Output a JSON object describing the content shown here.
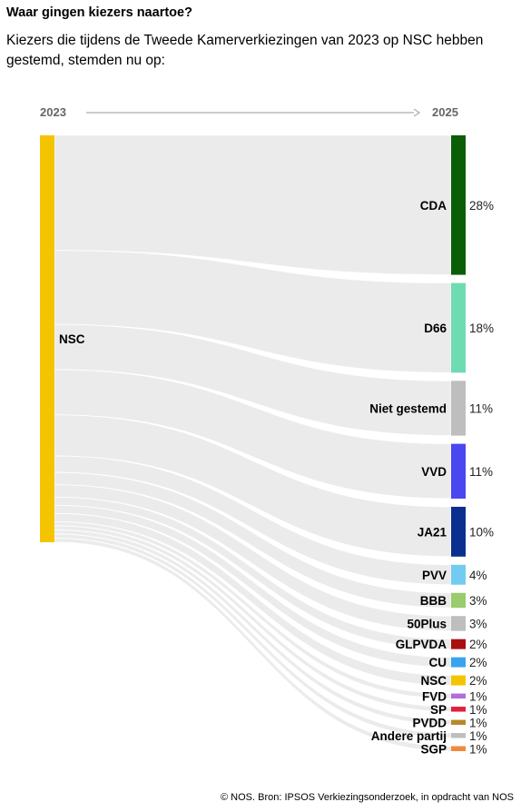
{
  "title": "Waar gingen kiezers naartoe?",
  "subtitle": "Kiezers die tijdens de Tweede Kamerverkiezingen van 2023 op NSC hebben gestemd, stemden nu op:",
  "source": "© NOS. Bron: IPSOS Verkiezingsonderzoek, in opdracht van NOS",
  "chart_data": {
    "type": "sankey",
    "x_start_label": "2023",
    "x_end_label": "2025",
    "source_node": {
      "name": "NSC",
      "color": "#F5C400"
    },
    "targets": [
      {
        "name": "CDA",
        "value": 28,
        "label": "28%",
        "color": "#0B5E06"
      },
      {
        "name": "D66",
        "value": 18,
        "label": "18%",
        "color": "#6FDBB3"
      },
      {
        "name": "Niet gestemd",
        "value": 11,
        "label": "11%",
        "color": "#BEBEBE"
      },
      {
        "name": "VVD",
        "value": 11,
        "label": "11%",
        "color": "#4A46F0"
      },
      {
        "name": "JA21",
        "value": 10,
        "label": "10%",
        "color": "#0A2F8F"
      },
      {
        "name": "PVV",
        "value": 4,
        "label": "4%",
        "color": "#72CCF2"
      },
      {
        "name": "BBB",
        "value": 3,
        "label": "3%",
        "color": "#9ACB6C"
      },
      {
        "name": "50Plus",
        "value": 3,
        "label": "3%",
        "color": "#BEBEBE"
      },
      {
        "name": "GLPVDA",
        "value": 2,
        "label": "2%",
        "color": "#A80F0F"
      },
      {
        "name": "CU",
        "value": 2,
        "label": "2%",
        "color": "#39A3F0"
      },
      {
        "name": "NSC",
        "value": 2,
        "label": "2%",
        "color": "#F5C400"
      },
      {
        "name": "FVD",
        "value": 1,
        "label": "1%",
        "color": "#B070D8"
      },
      {
        "name": "SP",
        "value": 1,
        "label": "1%",
        "color": "#E0203C"
      },
      {
        "name": "PVDD",
        "value": 1,
        "label": "1%",
        "color": "#B8892A"
      },
      {
        "name": "Andere partij",
        "value": 1,
        "label": "1%",
        "color": "#BEBEBE"
      },
      {
        "name": "SGP",
        "value": 1,
        "label": "1%",
        "color": "#F08A3C"
      }
    ],
    "flow_color": "#EBEBEB"
  }
}
